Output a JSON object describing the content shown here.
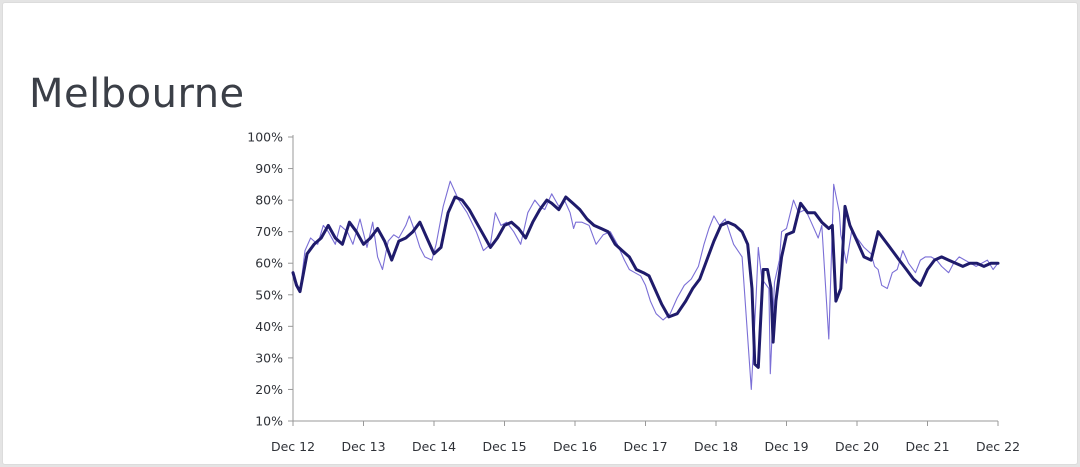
{
  "chart_data": {
    "type": "line",
    "title": "Melbourne",
    "xlabel": "",
    "ylabel": "",
    "x_tick_labels": [
      "Dec 12",
      "Dec 13",
      "Dec 14",
      "Dec 15",
      "Dec 16",
      "Dec 17",
      "Dec 18",
      "Dec 19",
      "Dec 20",
      "Dec 21",
      "Dec 22"
    ],
    "y_tick_labels": [
      "10%",
      "20%",
      "30%",
      "40%",
      "50%",
      "60%",
      "70%",
      "80%",
      "90%",
      "100%"
    ],
    "xlim": [
      "2012-12",
      "2022-12"
    ],
    "ylim": [
      10,
      100
    ],
    "grid": false,
    "legend": "none",
    "colors": {
      "trend": "#1f1b6b",
      "raw": "#7b6fd6",
      "axis": "#999999",
      "title": "#3b3f47"
    },
    "series": [
      {
        "style": "thin raw line",
        "x": [
          2012.95,
          2013.05,
          2013.12,
          2013.2,
          2013.3,
          2013.38,
          2013.45,
          2013.55,
          2013.62,
          2013.72,
          2013.8,
          2013.9,
          2014.0,
          2014.08,
          2014.15,
          2014.22,
          2014.3,
          2014.38,
          2014.45,
          2014.55,
          2014.6,
          2014.68,
          2014.75,
          2014.82,
          2014.92,
          2014.98,
          2015.08,
          2015.18,
          2015.3,
          2015.42,
          2015.55,
          2015.65,
          2015.75,
          2015.82,
          2015.9,
          2015.98,
          2016.08,
          2016.18,
          2016.28,
          2016.38,
          2016.45,
          2016.52,
          2016.62,
          2016.72,
          2016.8,
          2016.88,
          2016.93,
          2016.96,
          2017.05,
          2017.15,
          2017.25,
          2017.35,
          2017.45,
          2017.55,
          2017.65,
          2017.72,
          2017.8,
          2017.88,
          2017.95,
          2018.02,
          2018.1,
          2018.2,
          2018.3,
          2018.4,
          2018.5,
          2018.6,
          2018.7,
          2018.78,
          2018.85,
          2018.92,
          2019.0,
          2019.08,
          2019.2,
          2019.32,
          2019.45,
          2019.52,
          2019.55,
          2019.6,
          2019.7,
          2019.72,
          2019.78,
          2019.85,
          2019.88,
          2019.95,
          2020.05,
          2020.12,
          2020.22,
          2020.3,
          2020.4,
          2020.45,
          2020.55,
          2020.62,
          2020.7,
          2020.72,
          2020.75,
          2020.8,
          2020.88,
          2020.95,
          2021.05,
          2021.15,
          2021.2,
          2021.25,
          2021.3,
          2021.38,
          2021.45,
          2021.52,
          2021.6,
          2021.68,
          2021.78,
          2021.85,
          2021.92,
          2022.0,
          2022.08,
          2022.15,
          2022.25,
          2022.32,
          2022.4,
          2022.48,
          2022.56,
          2022.64,
          2022.72,
          2022.8,
          2022.88,
          2022.95
        ],
        "y": [
          57,
          51,
          64,
          68,
          66,
          72,
          70,
          66,
          72,
          70,
          66,
          74,
          65,
          73,
          62,
          58,
          67,
          69,
          68,
          72,
          75,
          70,
          65,
          62,
          61,
          66,
          78,
          86,
          80,
          76,
          70,
          64,
          66,
          76,
          72,
          73,
          70,
          66,
          76,
          80,
          78,
          77,
          82,
          78,
          80,
          76,
          71,
          73,
          73,
          72,
          66,
          69,
          70,
          66,
          61,
          58,
          57,
          56,
          53,
          48,
          44,
          42,
          44,
          49,
          53,
          55,
          59,
          66,
          71,
          75,
          72,
          74,
          66,
          62,
          20,
          50,
          65,
          55,
          52,
          25,
          54,
          61,
          70,
          71,
          80,
          76,
          77,
          73,
          68,
          72,
          36,
          85,
          76,
          69,
          66,
          60,
          71,
          68,
          65,
          63,
          59,
          58,
          53,
          52,
          57,
          58,
          64,
          60,
          57,
          61,
          62,
          62,
          61,
          59,
          57,
          60,
          62,
          61,
          60,
          59,
          60,
          61,
          58,
          60
        ]
      },
      {
        "style": "thick smoothed line",
        "x": [
          2012.95,
          2013.0,
          2013.05,
          2013.15,
          2013.25,
          2013.35,
          2013.45,
          2013.55,
          2013.65,
          2013.75,
          2013.85,
          2013.95,
          2014.05,
          2014.15,
          2014.25,
          2014.35,
          2014.45,
          2014.55,
          2014.65,
          2014.75,
          2014.85,
          2014.95,
          2015.05,
          2015.15,
          2015.25,
          2015.35,
          2015.45,
          2015.55,
          2015.65,
          2015.75,
          2015.85,
          2015.95,
          2016.05,
          2016.15,
          2016.25,
          2016.35,
          2016.45,
          2016.55,
          2016.62,
          2016.72,
          2016.82,
          2016.92,
          2017.02,
          2017.12,
          2017.22,
          2017.32,
          2017.42,
          2017.52,
          2017.62,
          2017.72,
          2017.82,
          2017.92,
          2018.0,
          2018.08,
          2018.18,
          2018.28,
          2018.4,
          2018.52,
          2018.62,
          2018.72,
          2018.82,
          2018.92,
          2019.02,
          2019.12,
          2019.22,
          2019.32,
          2019.4,
          2019.46,
          2019.5,
          2019.55,
          2019.62,
          2019.68,
          2019.73,
          2019.76,
          2019.8,
          2019.88,
          2019.95,
          2020.05,
          2020.15,
          2020.25,
          2020.35,
          2020.45,
          2020.55,
          2020.6,
          2020.65,
          2020.72,
          2020.78,
          2020.85,
          2020.95,
          2021.05,
          2021.15,
          2021.25,
          2021.35,
          2021.45,
          2021.55,
          2021.65,
          2021.75,
          2021.85,
          2021.95,
          2022.05,
          2022.15,
          2022.25,
          2022.35,
          2022.45,
          2022.55,
          2022.65,
          2022.75,
          2022.85,
          2022.95
        ],
        "y": [
          57,
          53,
          51,
          63,
          66,
          68,
          72,
          68,
          66,
          73,
          70,
          66,
          68,
          71,
          67,
          61,
          67,
          68,
          70,
          73,
          68,
          63,
          65,
          76,
          81,
          80,
          77,
          73,
          69,
          65,
          68,
          72,
          73,
          71,
          68,
          73,
          77,
          80,
          79,
          77,
          81,
          79,
          77,
          74,
          72,
          71,
          70,
          66,
          64,
          62,
          58,
          57,
          56,
          52,
          47,
          43,
          44,
          48,
          52,
          55,
          61,
          67,
          72,
          73,
          72,
          70,
          66,
          52,
          28,
          27,
          58,
          58,
          52,
          35,
          48,
          62,
          69,
          70,
          79,
          76,
          76,
          73,
          71,
          72,
          48,
          52,
          78,
          72,
          67,
          62,
          61,
          70,
          67,
          64,
          61,
          58,
          55,
          53,
          58,
          61,
          62,
          61,
          60,
          59,
          60,
          60,
          59,
          60,
          60
        ]
      }
    ]
  }
}
